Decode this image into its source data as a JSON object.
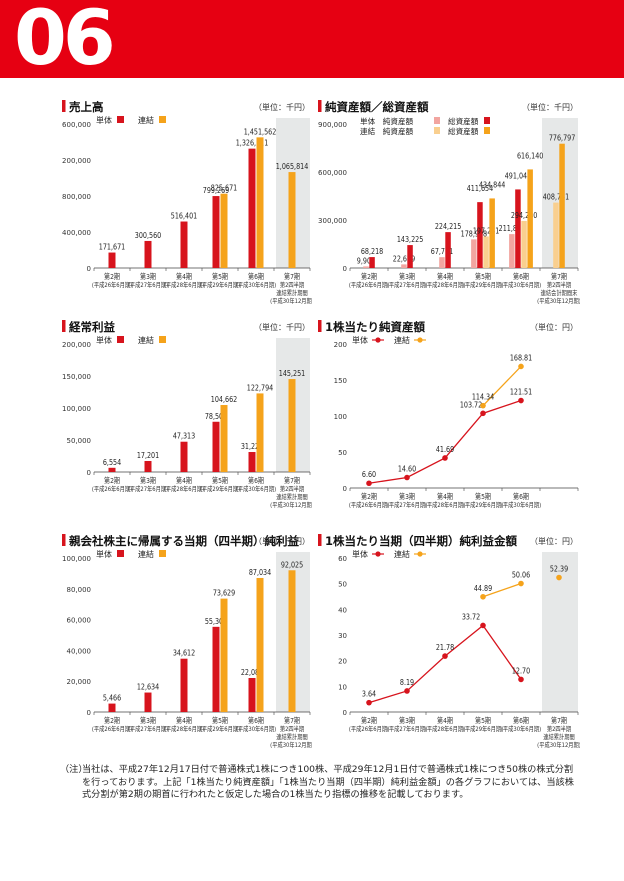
{
  "header": {
    "page_number": "06",
    "band_color": "#e60012"
  },
  "colors": {
    "tandoku": "#d7141d",
    "renketsu": "#f5a31b",
    "tandoku_light": "#f2a5a0",
    "renketsu_light": "#f9cf8f",
    "forecast_bg": "#e6e8e8"
  },
  "legend_labels": {
    "tandoku": "単体",
    "renketsu": "連結"
  },
  "charts": [
    {
      "id": "sales",
      "title": "売上高",
      "unit": "（単位：千円）",
      "chart_data": {
        "type": "bar",
        "categories": [
          [
            "第2期",
            "(平成26年6月期)"
          ],
          [
            "第3期",
            "(平成27年6月期)"
          ],
          [
            "第4期",
            "(平成28年6月期)"
          ],
          [
            "第5期",
            "(平成29年6月期)"
          ],
          [
            "第6期",
            "(平成30年6月期)"
          ],
          [
            "第7期",
            "第2四半期",
            "連結累計期間",
            "(平成30年12月期)"
          ]
        ],
        "ylim": [
          0,
          1600000
        ],
        "yticks": [
          "0",
          "400,000",
          "800,000",
          "1,200,000",
          "1,600,000"
        ],
        "grid": false,
        "forecast_index": 5,
        "series": [
          {
            "name": "単体",
            "values": [
              171671,
              300560,
              516401,
              799269,
              1326111,
              null
            ],
            "labels": [
              "171,671",
              "300,560",
              "516,401",
              "799,269",
              "1,326,111",
              ""
            ]
          },
          {
            "name": "連結",
            "values": [
              null,
              null,
              null,
              825671,
              1451562,
              1065814
            ],
            "labels": [
              "",
              "",
              "",
              "825,671",
              "1,451,562",
              "1,065,814"
            ]
          }
        ]
      }
    },
    {
      "id": "assets",
      "title": "純資産額／総資産額",
      "unit": "（単位：千円）",
      "legend_rows": [
        [
          {
            "text": "単体　純資産額",
            "color": "tandoku_light"
          },
          {
            "text": "総資産額",
            "color": "tandoku"
          }
        ],
        [
          {
            "text": "連結　純資産額",
            "color": "renketsu_light"
          },
          {
            "text": "総資産額",
            "color": "renketsu"
          }
        ]
      ],
      "chart_data": {
        "type": "bar",
        "categories": [
          [
            "第2期",
            "(平成26年6月期)"
          ],
          [
            "第3期",
            "(平成27年6月期)"
          ],
          [
            "第4期",
            "(平成28年6月期)"
          ],
          [
            "第5期",
            "(平成29年6月期)"
          ],
          [
            "第6期",
            "(平成30年6月期)"
          ],
          [
            "第7期",
            "第2四半期",
            "連結会計期間末",
            "(平成30年12月期)"
          ]
        ],
        "ylim": [
          0,
          900000
        ],
        "yticks": [
          "0",
          "300,000",
          "600,000",
          "900,000"
        ],
        "grid": false,
        "forecast_index": 5,
        "series": [
          {
            "name": "単体 純資産額",
            "color": "tandoku_light",
            "values": [
              9905,
              22639,
              67751,
              178918,
              211805,
              null
            ],
            "labels": [
              "9,905",
              "22,639",
              "67,751",
              "178,918",
              "211,805",
              ""
            ]
          },
          {
            "name": "単体 総資産額",
            "color": "tandoku",
            "values": [
              68218,
              143225,
              224215,
              411654,
              491044,
              null
            ],
            "labels": [
              "68,218",
              "143,225",
              "224,215",
              "411,654",
              "491,044",
              ""
            ]
          },
          {
            "name": "連結 純資産額",
            "color": "renketsu_light",
            "values": [
              null,
              null,
              null,
              197241,
              294240,
              408781
            ],
            "labels": [
              "",
              "",
              "",
              "197,241",
              "294,240",
              "408,781"
            ]
          },
          {
            "name": "連結 総資産額",
            "color": "renketsu",
            "values": [
              null,
              null,
              null,
              434844,
              616140,
              776797
            ],
            "labels": [
              "",
              "",
              "",
              "434,844",
              "616,140",
              "776,797"
            ]
          }
        ]
      }
    },
    {
      "id": "ordinary",
      "title": "経常利益",
      "unit": "（単位：千円）",
      "chart_data": {
        "type": "bar",
        "categories": [
          [
            "第2期",
            "(平成26年6月期)"
          ],
          [
            "第3期",
            "(平成27年6月期)"
          ],
          [
            "第4期",
            "(平成28年6月期)"
          ],
          [
            "第5期",
            "(平成29年6月期)"
          ],
          [
            "第6期",
            "(平成30年6月期)"
          ],
          [
            "第7期",
            "第2四半期",
            "連結累計期間",
            "(平成30年12月期)"
          ]
        ],
        "ylim": [
          0,
          200000
        ],
        "yticks": [
          "0",
          "50,000",
          "100,000",
          "150,000",
          "200,000"
        ],
        "grid": false,
        "forecast_index": 5,
        "series": [
          {
            "name": "単体",
            "values": [
              6554,
              17201,
              47313,
              78504,
              31228,
              null
            ],
            "labels": [
              "6,554",
              "17,201",
              "47,313",
              "78,504",
              "31,228",
              ""
            ]
          },
          {
            "name": "連結",
            "values": [
              null,
              null,
              null,
              104662,
              122794,
              145251
            ],
            "labels": [
              "",
              "",
              "",
              "104,662",
              "122,794",
              "145,251"
            ]
          }
        ]
      }
    },
    {
      "id": "bps",
      "title": "1株当たり純資産額",
      "unit": "（単位：円）",
      "chart_data": {
        "type": "line",
        "categories": [
          [
            "第2期",
            "(平成26年6月期)"
          ],
          [
            "第3期",
            "(平成27年6月期)"
          ],
          [
            "第4期",
            "(平成28年6月期)"
          ],
          [
            "第5期",
            "(平成29年6月期)"
          ],
          [
            "第6期",
            "(平成30年6月期)"
          ]
        ],
        "ylim": [
          0,
          200
        ],
        "yticks": [
          "0",
          "50",
          "100",
          "150",
          "200"
        ],
        "grid": false,
        "forecast_index": null,
        "series": [
          {
            "name": "単体",
            "values": [
              6.6,
              14.6,
              41.69,
              103.72,
              121.51
            ],
            "labels": [
              "6.60",
              "14.60",
              "41.69",
              "103.72",
              "121.51"
            ]
          },
          {
            "name": "連結",
            "values": [
              null,
              null,
              null,
              114.34,
              168.81
            ],
            "labels": [
              "",
              "",
              "",
              "114.34",
              "168.81"
            ]
          }
        ]
      }
    },
    {
      "id": "netincome",
      "title": "親会社株主に帰属する当期（四半期）純利益",
      "unit": "（単位：千円）",
      "chart_data": {
        "type": "bar",
        "categories": [
          [
            "第2期",
            "(平成26年6月期)"
          ],
          [
            "第3期",
            "(平成27年6月期)"
          ],
          [
            "第4期",
            "(平成28年6月期)"
          ],
          [
            "第5期",
            "(平成29年6月期)"
          ],
          [
            "第6期",
            "(平成30年6月期)"
          ],
          [
            "第7期",
            "第2四半期",
            "連結累計期間",
            "(平成30年12月期)"
          ]
        ],
        "ylim": [
          0,
          100000
        ],
        "yticks": [
          "0",
          "20,000",
          "40,000",
          "60,000",
          "80,000",
          "100,000"
        ],
        "grid": false,
        "forecast_index": 5,
        "series": [
          {
            "name": "単体",
            "values": [
              5466,
              12634,
              34612,
              55306,
              22086,
              null
            ],
            "labels": [
              "5,466",
              "12,634",
              "34,612",
              "55,306",
              "22,086",
              ""
            ]
          },
          {
            "name": "連結",
            "values": [
              null,
              null,
              null,
              73629,
              87034,
              92025
            ],
            "labels": [
              "",
              "",
              "",
              "73,629",
              "87,034",
              "92,025"
            ]
          }
        ]
      }
    },
    {
      "id": "eps",
      "title": "1株当たり当期（四半期）純利益金額",
      "unit": "（単位：円）",
      "chart_data": {
        "type": "line",
        "categories": [
          [
            "第2期",
            "(平成26年6月期)"
          ],
          [
            "第3期",
            "(平成27年6月期)"
          ],
          [
            "第4期",
            "(平成28年6月期)"
          ],
          [
            "第5期",
            "(平成29年6月期)"
          ],
          [
            "第6期",
            "(平成30年6月期)"
          ],
          [
            "第7期",
            "第2四半期",
            "連結累計期間",
            "(平成30年12月期)"
          ]
        ],
        "ylim": [
          0,
          60
        ],
        "yticks": [
          "0",
          "10",
          "20",
          "30",
          "40",
          "50",
          "60"
        ],
        "grid": false,
        "forecast_index": 5,
        "series": [
          {
            "name": "単体",
            "values": [
              3.64,
              8.19,
              21.78,
              33.72,
              12.7,
              null
            ],
            "labels": [
              "3.64",
              "8.19",
              "21.78",
              "33.72",
              "12.70",
              ""
            ]
          },
          {
            "name": "連結",
            "values": [
              null,
              null,
              null,
              44.89,
              50.06,
              52.39
            ],
            "labels": [
              "",
              "",
              "",
              "44.89",
              "50.06",
              "52.39"
            ],
            "connect_last": false
          }
        ]
      }
    }
  ],
  "footnote": {
    "lead": "（注）",
    "text": "当社は、平成27年12月17日付で普通株式1株につき100株、平成29年12月1日付で普通株式1株につき50株の株式分割を行っております。上記「1株当たり純資産額」「1株当たり当期（四半期）純利益金額」の各グラフにおいては、当該株式分割が第2期の期首に行われたと仮定した場合の1株当たり指標の推移を記載しております。"
  }
}
